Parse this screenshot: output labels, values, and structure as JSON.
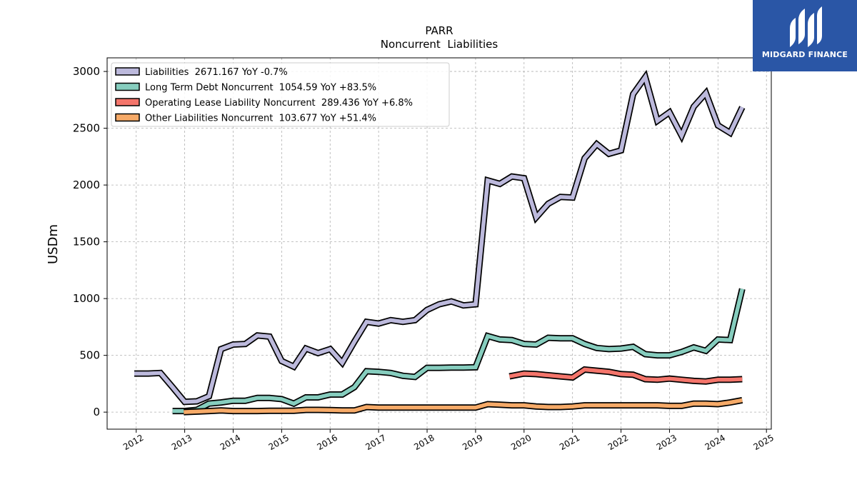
{
  "chart_data": {
    "type": "line",
    "title": "PARR",
    "subtitle": "Noncurrent  Liabilities",
    "xlabel": "",
    "ylabel": "USDm",
    "xlim": [
      2011.4,
      2025.1
    ],
    "ylim": [
      -150,
      3120
    ],
    "x_ticks": [
      "2012",
      "2013",
      "2014",
      "2015",
      "2016",
      "2017",
      "2018",
      "2019",
      "2020",
      "2021",
      "2022",
      "2023",
      "2024",
      "2025"
    ],
    "y_ticks": [
      "0",
      "500",
      "1000",
      "1500",
      "2000",
      "2500",
      "3000"
    ],
    "grid": true,
    "legend_position": "top-left",
    "series": [
      {
        "name": "Liabilities",
        "label": "Liabilities  2671.167 YoY -0.7%",
        "color": "#bcb9dc",
        "x": [
          2011.96,
          2012.25,
          2012.5,
          2012.75,
          2013.0,
          2013.25,
          2013.5,
          2013.75,
          2014.0,
          2014.25,
          2014.5,
          2014.75,
          2015.0,
          2015.25,
          2015.5,
          2015.75,
          2016.0,
          2016.25,
          2016.5,
          2016.75,
          2017.0,
          2017.25,
          2017.5,
          2017.75,
          2018.0,
          2018.25,
          2018.5,
          2018.75,
          2019.0,
          2019.25,
          2019.5,
          2019.75,
          2020.0,
          2020.25,
          2020.5,
          2020.75,
          2021.0,
          2021.25,
          2021.5,
          2021.75,
          2022.0,
          2022.25,
          2022.5,
          2022.75,
          2023.0,
          2023.25,
          2023.5,
          2023.75,
          2024.0,
          2024.25,
          2024.5
        ],
        "y": [
          340,
          340,
          345,
          220,
          90,
          95,
          140,
          555,
          595,
          600,
          675,
          665,
          450,
          400,
          560,
          520,
          555,
          435,
          620,
          795,
          780,
          810,
          795,
          810,
          900,
          950,
          975,
          940,
          950,
          2040,
          2010,
          2075,
          2060,
          1715,
          1835,
          1895,
          1890,
          2235,
          2360,
          2275,
          2305,
          2800,
          2950,
          2565,
          2640,
          2435,
          2690,
          2810,
          2525,
          2460,
          2685
        ]
      },
      {
        "name": "Long Term Debt Noncurrent",
        "label": "Long Term Debt Noncurrent  1054.59 YoY +83.5%",
        "color": "#86cdbe",
        "x": [
          2012.75,
          2013.0,
          2013.25,
          2013.5,
          2013.75,
          2014.0,
          2014.25,
          2014.5,
          2014.75,
          2015.0,
          2015.25,
          2015.5,
          2015.75,
          2016.0,
          2016.25,
          2016.5,
          2016.75,
          2017.0,
          2017.25,
          2017.5,
          2017.75,
          2018.0,
          2018.25,
          2018.5,
          2018.75,
          2019.0,
          2019.25,
          2019.5,
          2019.75,
          2020.0,
          2020.25,
          2020.5,
          2020.75,
          2021.0,
          2021.25,
          2021.5,
          2021.75,
          2022.0,
          2022.25,
          2022.5,
          2022.75,
          2023.0,
          2023.25,
          2023.5,
          2023.75,
          2024.0,
          2024.25,
          2024.5
        ],
        "y": [
          10,
          10,
          20,
          75,
          85,
          100,
          100,
          125,
          125,
          115,
          75,
          130,
          130,
          155,
          155,
          220,
          360,
          355,
          345,
          320,
          310,
          390,
          390,
          392,
          392,
          395,
          670,
          640,
          635,
          600,
          595,
          655,
          650,
          650,
          600,
          565,
          555,
          560,
          575,
          510,
          500,
          500,
          530,
          570,
          540,
          640,
          635,
          1085
        ]
      },
      {
        "name": "Operating Lease Liability Noncurrent",
        "label": "Operating Lease Liability Noncurrent  289.436 YoY +6.8%",
        "color": "#f4756b",
        "x": [
          2019.7,
          2020.0,
          2020.25,
          2020.5,
          2020.75,
          2021.0,
          2021.25,
          2021.5,
          2021.75,
          2022.0,
          2022.25,
          2022.5,
          2022.75,
          2023.0,
          2023.25,
          2023.5,
          2023.75,
          2024.0,
          2024.25,
          2024.5
        ],
        "y": [
          315,
          340,
          335,
          325,
          315,
          305,
          375,
          365,
          355,
          335,
          330,
          290,
          285,
          295,
          285,
          275,
          270,
          285,
          285,
          290
        ]
      },
      {
        "name": "Other Liabilities Noncurrent",
        "label": "Other Liabilities Noncurrent  103.677 YoY +51.4%",
        "color": "#f6aa68",
        "x": [
          2012.98,
          2013.25,
          2013.5,
          2013.75,
          2014.0,
          2014.25,
          2014.5,
          2014.75,
          2015.0,
          2015.25,
          2015.5,
          2015.75,
          2016.0,
          2016.25,
          2016.5,
          2016.75,
          2017.0,
          2017.25,
          2017.5,
          2017.75,
          2018.0,
          2018.25,
          2018.5,
          2018.75,
          2019.0,
          2019.25,
          2019.5,
          2019.75,
          2020.0,
          2020.25,
          2020.5,
          2020.75,
          2021.0,
          2021.25,
          2021.5,
          2021.75,
          2022.0,
          2022.25,
          2022.5,
          2022.75,
          2023.0,
          2023.25,
          2023.5,
          2023.75,
          2024.0,
          2024.25,
          2024.5
        ],
        "y": [
          0,
          5,
          10,
          15,
          10,
          10,
          10,
          12,
          12,
          12,
          20,
          20,
          18,
          15,
          15,
          45,
          40,
          40,
          40,
          40,
          40,
          40,
          40,
          40,
          40,
          70,
          65,
          60,
          60,
          50,
          45,
          45,
          50,
          60,
          60,
          60,
          60,
          60,
          60,
          60,
          55,
          55,
          75,
          75,
          70,
          85,
          105
        ]
      }
    ]
  },
  "logo": {
    "text": "MIDGARD FINANCE",
    "bg_color": "#2a56a6"
  }
}
